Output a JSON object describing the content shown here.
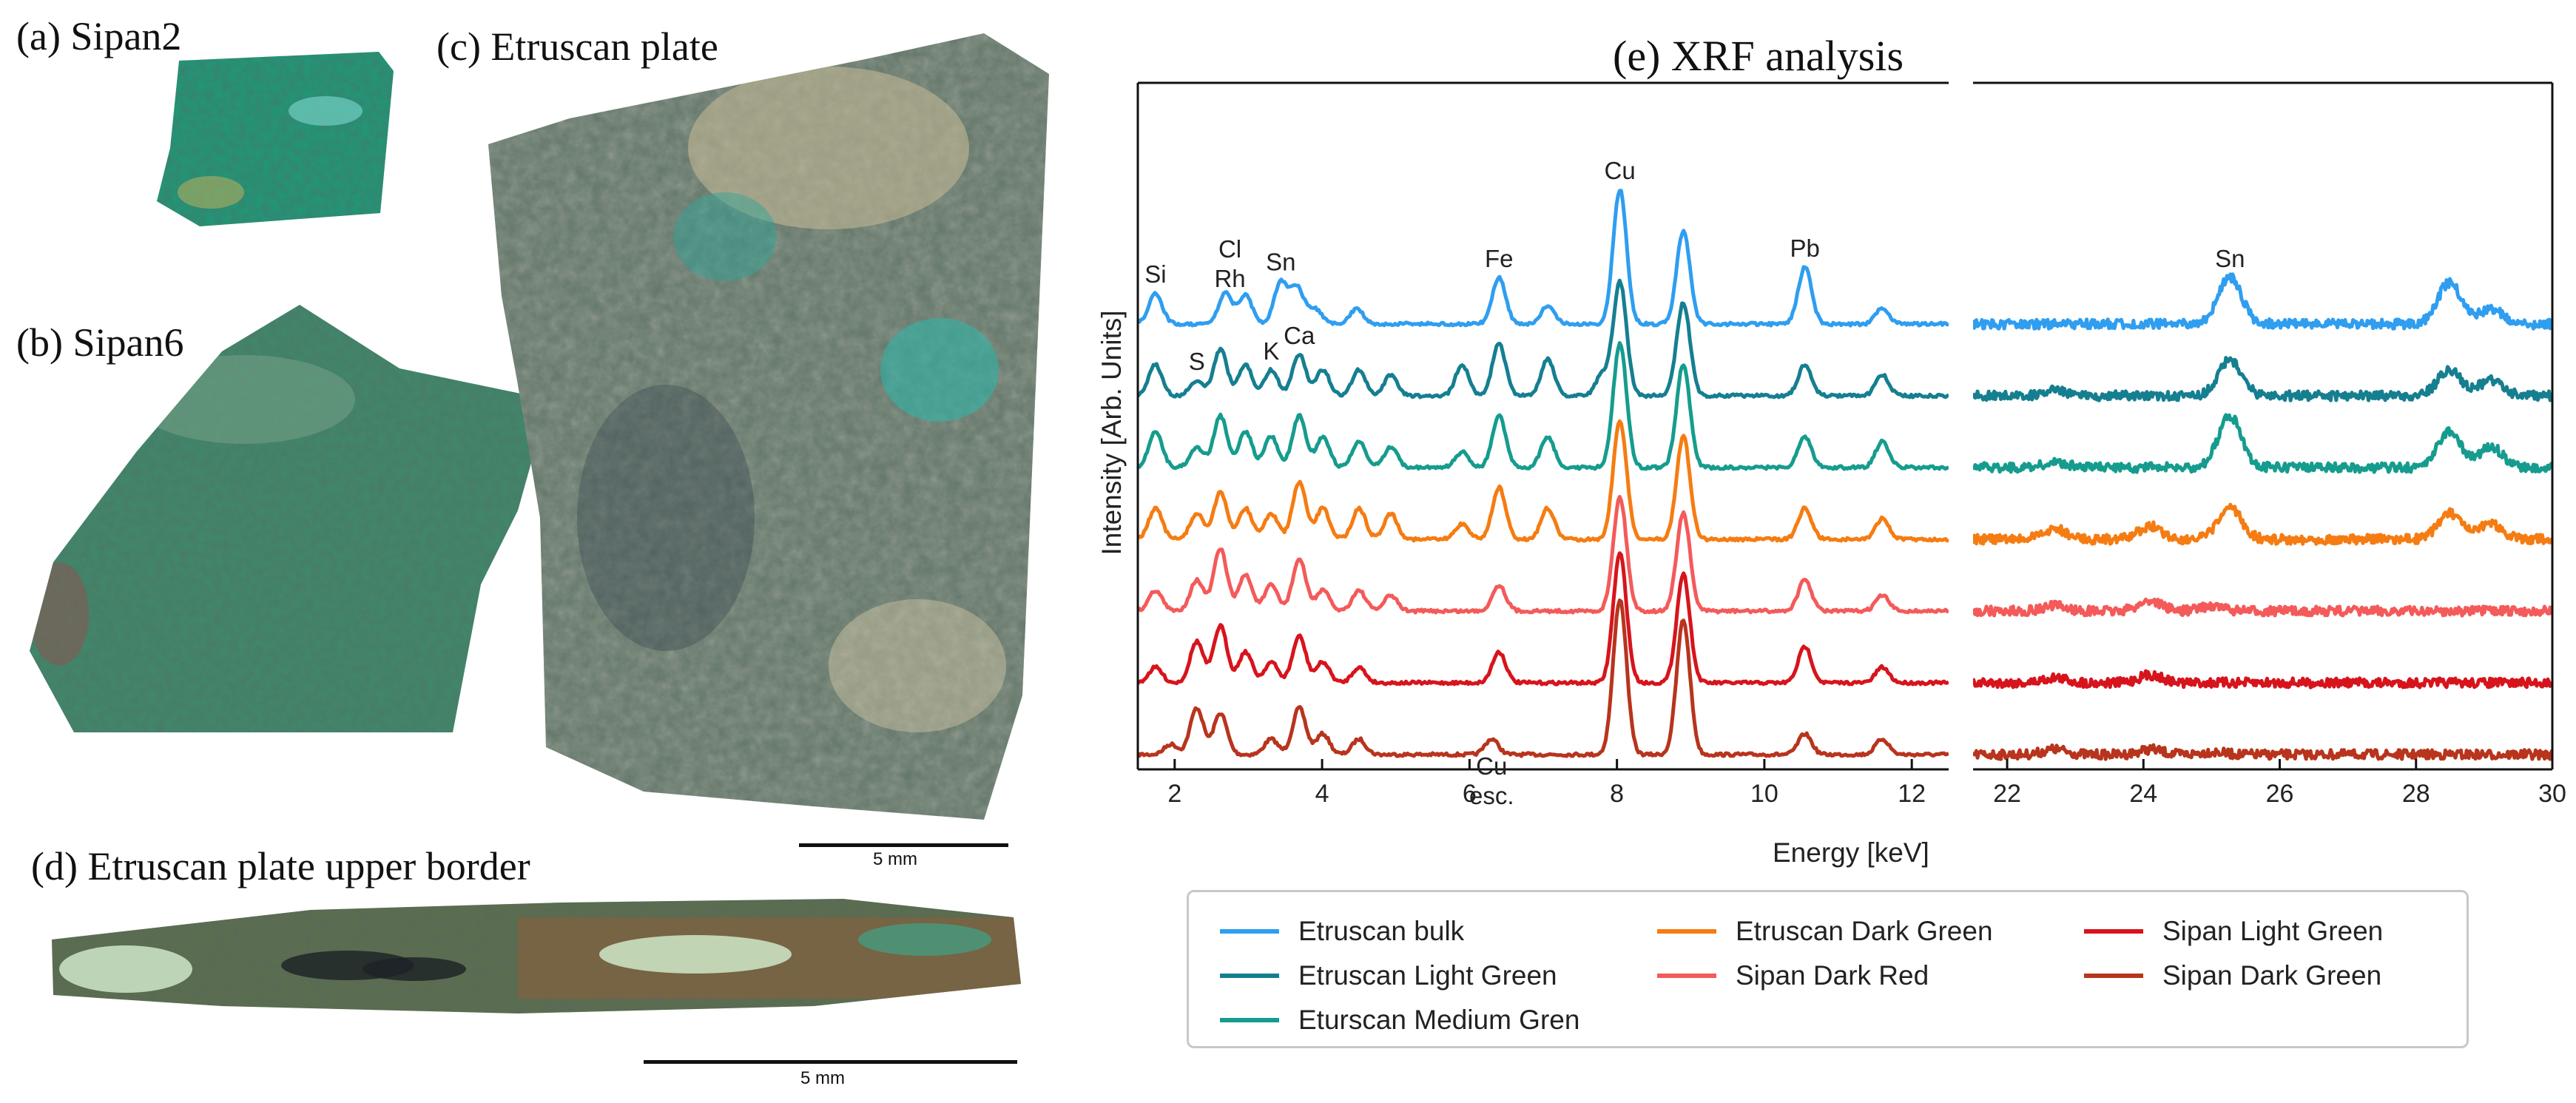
{
  "panels": {
    "a": "(a) Sipan2",
    "b": "(b) Sipan6",
    "c": "(c) Etruscan plate",
    "d": "(d) Etruscan plate upper border",
    "e": "(e) XRF analysis"
  },
  "scalebars": {
    "c": "5 mm",
    "d": "5 mm"
  },
  "samples": {
    "a": {
      "color": "#1c9a7a"
    },
    "b": {
      "color": "#3f8a6c"
    },
    "c": {
      "color": "#6b7a6d"
    },
    "d": {
      "color": "#5e6c4b"
    }
  },
  "chart_data": {
    "type": "line",
    "title": "(e) XRF analysis",
    "xlabel": "Energy [keV]",
    "ylabel": "Intensity [Arb. Units]",
    "broken_axis": true,
    "xlim_left": [
      1.5,
      12.5
    ],
    "xlim_right": [
      21.5,
      30
    ],
    "xticks_left": [
      2,
      4,
      6,
      8,
      10,
      12
    ],
    "xticks_right": [
      22,
      24,
      26,
      28,
      30
    ],
    "series": [
      {
        "name": "Etruscan bulk",
        "color": "#2f9ef0",
        "offset": 6,
        "peaks": [
          [
            1.74,
            0.6
          ],
          [
            2.69,
            0.6
          ],
          [
            2.96,
            0.55
          ],
          [
            3.44,
            0.8
          ],
          [
            3.66,
            0.7
          ],
          [
            3.9,
            0.3
          ],
          [
            4.47,
            0.3
          ],
          [
            6.4,
            0.9
          ],
          [
            7.06,
            0.35
          ],
          [
            8.04,
            2.6
          ],
          [
            8.9,
            1.8
          ],
          [
            10.55,
            1.1
          ],
          [
            11.6,
            0.3
          ],
          [
            25.27,
            0.9
          ],
          [
            28.49,
            0.8
          ],
          [
            29.1,
            0.3
          ]
        ]
      },
      {
        "name": "Etruscan Light Green",
        "color": "#157f90",
        "offset": 5,
        "peaks": [
          [
            1.74,
            0.6
          ],
          [
            2.3,
            0.3
          ],
          [
            2.62,
            0.9
          ],
          [
            2.96,
            0.6
          ],
          [
            3.31,
            0.5
          ],
          [
            3.69,
            0.8
          ],
          [
            4.01,
            0.5
          ],
          [
            4.5,
            0.5
          ],
          [
            4.93,
            0.4
          ],
          [
            5.9,
            0.6
          ],
          [
            6.4,
            1.0
          ],
          [
            7.06,
            0.7
          ],
          [
            7.8,
            0.4
          ],
          [
            8.04,
            2.2
          ],
          [
            8.9,
            1.8
          ],
          [
            10.55,
            0.6
          ],
          [
            11.6,
            0.4
          ],
          [
            22.7,
            0.1
          ],
          [
            25.27,
            0.7
          ],
          [
            28.49,
            0.5
          ],
          [
            29.1,
            0.3
          ]
        ]
      },
      {
        "name": "Eturscan Medium Gren",
        "color": "#169c8e",
        "offset": 4,
        "peaks": [
          [
            1.74,
            0.7
          ],
          [
            2.3,
            0.4
          ],
          [
            2.62,
            1.0
          ],
          [
            2.96,
            0.7
          ],
          [
            3.31,
            0.6
          ],
          [
            3.69,
            1.0
          ],
          [
            4.01,
            0.6
          ],
          [
            4.5,
            0.5
          ],
          [
            4.93,
            0.4
          ],
          [
            5.9,
            0.3
          ],
          [
            6.4,
            1.0
          ],
          [
            7.06,
            0.6
          ],
          [
            8.04,
            2.4
          ],
          [
            8.9,
            2.0
          ],
          [
            10.55,
            0.6
          ],
          [
            11.6,
            0.5
          ],
          [
            22.7,
            0.1
          ],
          [
            25.27,
            1.0
          ],
          [
            28.49,
            0.7
          ],
          [
            29.1,
            0.4
          ]
        ]
      },
      {
        "name": "Etruscan Dark Green",
        "color": "#f57c12",
        "offset": 3,
        "peaks": [
          [
            1.74,
            0.6
          ],
          [
            2.3,
            0.5
          ],
          [
            2.62,
            0.9
          ],
          [
            2.96,
            0.6
          ],
          [
            3.31,
            0.5
          ],
          [
            3.69,
            1.1
          ],
          [
            4.01,
            0.6
          ],
          [
            4.5,
            0.6
          ],
          [
            4.93,
            0.5
          ],
          [
            5.9,
            0.3
          ],
          [
            6.4,
            1.0
          ],
          [
            7.06,
            0.6
          ],
          [
            8.04,
            2.3
          ],
          [
            8.9,
            2.0
          ],
          [
            10.55,
            0.6
          ],
          [
            11.6,
            0.4
          ],
          [
            22.7,
            0.2
          ],
          [
            24.1,
            0.25
          ],
          [
            25.27,
            0.6
          ],
          [
            28.49,
            0.5
          ],
          [
            29.1,
            0.3
          ]
        ]
      },
      {
        "name": "Sipan Dark Red",
        "color": "#f45a5a",
        "offset": 2,
        "peaks": [
          [
            1.74,
            0.4
          ],
          [
            2.3,
            0.6
          ],
          [
            2.62,
            1.2
          ],
          [
            2.96,
            0.7
          ],
          [
            3.31,
            0.5
          ],
          [
            3.69,
            1.0
          ],
          [
            4.01,
            0.4
          ],
          [
            4.5,
            0.4
          ],
          [
            4.93,
            0.3
          ],
          [
            6.4,
            0.5
          ],
          [
            8.04,
            2.2
          ],
          [
            8.9,
            1.9
          ],
          [
            10.55,
            0.6
          ],
          [
            11.6,
            0.3
          ],
          [
            22.7,
            0.1
          ],
          [
            24.1,
            0.2
          ],
          [
            25.0,
            0.1
          ]
        ]
      },
      {
        "name": "Sipan Light Green",
        "color": "#d7141c",
        "offset": 1,
        "peaks": [
          [
            1.74,
            0.3
          ],
          [
            2.3,
            0.8
          ],
          [
            2.62,
            1.1
          ],
          [
            2.96,
            0.6
          ],
          [
            3.31,
            0.4
          ],
          [
            3.69,
            0.9
          ],
          [
            4.01,
            0.4
          ],
          [
            4.5,
            0.3
          ],
          [
            6.4,
            0.6
          ],
          [
            8.04,
            2.5
          ],
          [
            8.9,
            2.1
          ],
          [
            10.55,
            0.7
          ],
          [
            11.6,
            0.3
          ],
          [
            22.7,
            0.1
          ],
          [
            24.1,
            0.15
          ]
        ]
      },
      {
        "name": "Sipan Dark Green",
        "color": "#b8341d",
        "offset": 0,
        "peaks": [
          [
            1.95,
            0.2
          ],
          [
            2.3,
            0.9
          ],
          [
            2.62,
            0.8
          ],
          [
            3.31,
            0.3
          ],
          [
            3.69,
            0.9
          ],
          [
            4.01,
            0.4
          ],
          [
            4.5,
            0.3
          ],
          [
            6.3,
            0.3
          ],
          [
            8.04,
            3.0
          ],
          [
            8.9,
            2.6
          ],
          [
            10.55,
            0.4
          ],
          [
            11.6,
            0.3
          ],
          [
            22.7,
            0.1
          ],
          [
            24.1,
            0.1
          ],
          [
            25.0,
            0.05
          ]
        ]
      }
    ],
    "annotations": [
      {
        "text": "Si",
        "x": 1.74,
        "series": "Etruscan bulk"
      },
      {
        "text": "Cl",
        "x": 2.75,
        "series": "Etruscan bulk"
      },
      {
        "text": "Rh",
        "x": 2.75,
        "series": "Etruscan bulk"
      },
      {
        "text": "Sn",
        "x": 3.44,
        "series": "Etruscan bulk"
      },
      {
        "text": "Ca",
        "x": 3.69,
        "series": "Etruscan Light Green"
      },
      {
        "text": "S",
        "x": 2.3,
        "series": "Etruscan Light Green"
      },
      {
        "text": "K",
        "x": 3.31,
        "series": "Etruscan Light Green"
      },
      {
        "text": "Fe",
        "x": 6.4,
        "series": "Etruscan bulk"
      },
      {
        "text": "Cu",
        "x": 8.04,
        "series": "Etruscan bulk"
      },
      {
        "text": "Pb",
        "x": 10.55,
        "series": "Etruscan bulk"
      },
      {
        "text": "Sn",
        "x": 25.27,
        "series": "Etruscan bulk"
      },
      {
        "text": "Cu",
        "x": 6.3,
        "series": "Sipan Dark Green"
      },
      {
        "text": "esc.",
        "x": 6.3,
        "series": "Sipan Dark Green"
      }
    ],
    "legend": {
      "columns": 3,
      "order": [
        "Etruscan bulk",
        "Etruscan Light Green",
        "Eturscan Medium Gren",
        "Etruscan Dark Green",
        "Sipan Dark Red",
        "Sipan Light Green",
        "Sipan Dark Green"
      ]
    }
  }
}
